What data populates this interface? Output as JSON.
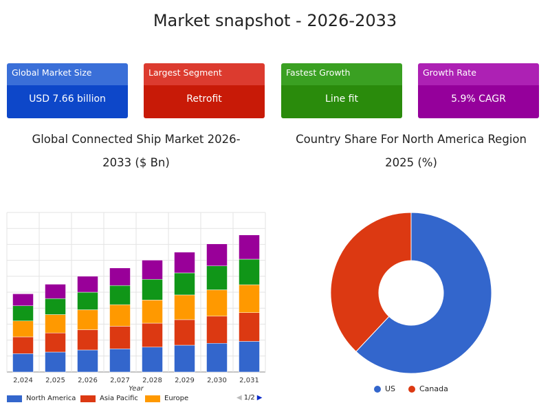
{
  "page": {
    "title": "Market snapshot - 2026-2033"
  },
  "cards": [
    {
      "label": "Global Market Size",
      "value": "USD 7.66 billion",
      "head_color": "#3a6fd8",
      "body_color": "#0d47c9"
    },
    {
      "label": "Largest Segment",
      "value": "Retrofit",
      "head_color": "#dc3b2f",
      "body_color": "#c81a07"
    },
    {
      "label": "Fastest Growth",
      "value": "Line fit",
      "head_color": "#3aa022",
      "body_color": "#2a8b0c"
    },
    {
      "label": "Growth Rate",
      "value": "5.9% CAGR",
      "head_color": "#ad21b4",
      "body_color": "#95009b"
    }
  ],
  "bar_title": {
    "line1": "Global Connected Ship Market 2026-",
    "line2": "2033 ($ Bn)"
  },
  "pie_title": {
    "line1": "Country Share For North America Region",
    "line2": "2025 (%)"
  },
  "chart_data": [
    {
      "type": "bar",
      "stacked": true,
      "categories": [
        "2,024",
        "2,025",
        "2,026",
        "2,027",
        "2,028",
        "2,029",
        "2,030",
        "2,031"
      ],
      "xlabel": "Year",
      "ylabel": "",
      "ylim": [
        0,
        10
      ],
      "grid": true,
      "legend_position": "bottom",
      "legend_page": "1/2",
      "series": [
        {
          "name": "North America",
          "color": "#3366cc",
          "values": [
            1.15,
            1.25,
            1.38,
            1.45,
            1.56,
            1.68,
            1.8,
            1.92
          ]
        },
        {
          "name": "Asia Pacific",
          "color": "#dc3912",
          "values": [
            1.05,
            1.2,
            1.27,
            1.42,
            1.5,
            1.6,
            1.7,
            1.8
          ]
        },
        {
          "name": "Europe",
          "color": "#ff9900",
          "values": [
            1.0,
            1.15,
            1.25,
            1.35,
            1.45,
            1.55,
            1.65,
            1.75
          ]
        },
        {
          "name": "",
          "color": "#109618",
          "values": [
            0.95,
            1.0,
            1.1,
            1.2,
            1.3,
            1.38,
            1.5,
            1.6
          ]
        },
        {
          "name": "",
          "color": "#990099",
          "values": [
            0.75,
            0.9,
            1.0,
            1.1,
            1.2,
            1.3,
            1.38,
            1.52
          ]
        }
      ]
    },
    {
      "type": "pie",
      "donut": true,
      "legend_position": "bottom",
      "slices": [
        {
          "name": "US",
          "value": 62,
          "color": "#3366cc"
        },
        {
          "name": "Canada",
          "value": 38,
          "color": "#dc3912"
        }
      ]
    }
  ]
}
